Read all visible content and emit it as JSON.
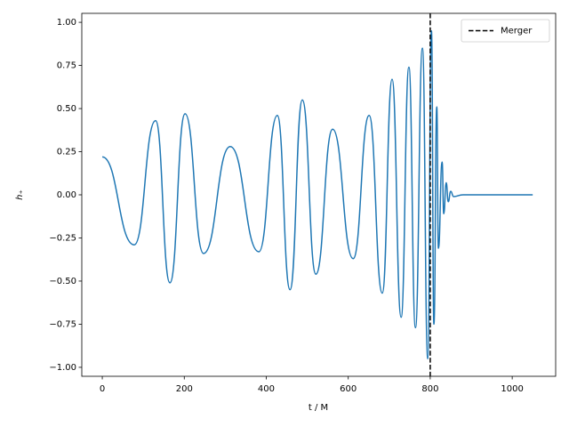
{
  "chart_data": {
    "type": "line",
    "xlabel": "t / M",
    "ylabel": "h₊",
    "x": [
      0,
      78,
      130,
      165,
      202,
      247,
      312,
      382,
      427,
      458,
      488,
      521,
      562,
      612,
      651,
      683,
      707,
      729,
      748,
      764,
      781,
      794,
      803,
      809,
      816,
      820,
      829,
      833,
      839,
      844,
      850,
      857,
      880,
      1050
    ],
    "series": [
      {
        "color": "#1f77b4",
        "values": [
          0.22,
          -0.29,
          0.43,
          -0.51,
          0.47,
          -0.34,
          0.28,
          -0.33,
          0.46,
          -0.55,
          0.55,
          -0.46,
          0.38,
          -0.37,
          0.46,
          -0.57,
          0.67,
          -0.71,
          0.74,
          -0.77,
          0.85,
          -0.95,
          0.95,
          -0.75,
          0.51,
          -0.31,
          0.19,
          -0.11,
          0.07,
          -0.04,
          0.02,
          -0.01,
          0,
          0
        ]
      }
    ],
    "vlines": [
      {
        "name": "Merger",
        "x": 800,
        "color": "#000000",
        "style": "dashed"
      }
    ],
    "xlim": [
      -50,
      1106
    ],
    "ylim": [
      -1.052,
      1.052
    ],
    "xticks": [
      0,
      200,
      400,
      600,
      800,
      1000
    ],
    "yticks": [
      {
        "value": -1,
        "label": "−1.00"
      },
      {
        "value": -0.75,
        "label": "−0.75"
      },
      {
        "value": -0.5,
        "label": "−0.50"
      },
      {
        "value": -0.25,
        "label": "−0.25"
      },
      {
        "value": 0,
        "label": "0.00"
      },
      {
        "value": 0.25,
        "label": "0.25"
      },
      {
        "value": 0.5,
        "label": "0.50"
      },
      {
        "value": 0.75,
        "label": "0.75"
      },
      {
        "value": 1,
        "label": "1.00"
      }
    ],
    "legend": "upper right",
    "grid": false
  }
}
